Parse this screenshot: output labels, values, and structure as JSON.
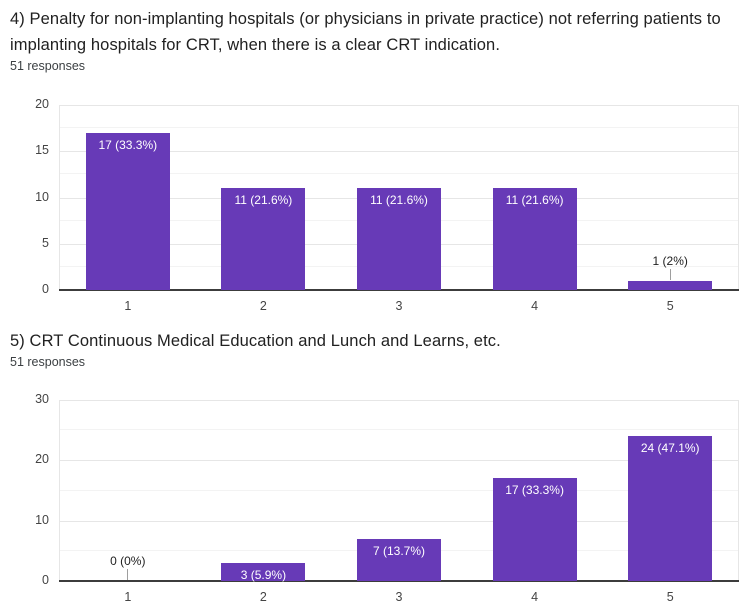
{
  "page": {
    "background": "#ffffff"
  },
  "chart_data": [
    {
      "type": "bar",
      "title": "4) Penalty for non-implanting hospitals (or physicians in private practice) not referring patients to implanting hospitals for CRT, when there is a clear CRT indication.",
      "title_lines": [
        "4) Penalty for non-implanting hospitals (or physicians in private practice) not referring patients to",
        "implanting hospitals for CRT, when there is a clear CRT indication."
      ],
      "subtitle": "51 responses",
      "categories": [
        "1",
        "2",
        "3",
        "4",
        "5"
      ],
      "values": [
        17,
        11,
        11,
        11,
        1
      ],
      "value_labels": [
        "17 (33.3%)",
        "11 (21.6%)",
        "11 (21.6%)",
        "11 (21.6%)",
        "1 (2%)"
      ],
      "xlabel": "",
      "ylabel": "",
      "ylim": [
        0,
        20
      ],
      "yticks": [
        0,
        5,
        10,
        15,
        20
      ],
      "minor_grid_step": 2.5,
      "bar_color": "#673ab7",
      "grid": true,
      "legend_position": "none"
    },
    {
      "type": "bar",
      "title": "5) CRT Continuous Medical Education and Lunch and Learns, etc.",
      "title_lines": [
        "5) CRT Continuous Medical Education and Lunch and Learns, etc.",
        ""
      ],
      "subtitle": "51 responses",
      "categories": [
        "1",
        "2",
        "3",
        "4",
        "5"
      ],
      "values": [
        0,
        3,
        7,
        17,
        24
      ],
      "value_labels": [
        "0 (0%)",
        "3 (5.9%)",
        "7 (13.7%)",
        "17 (33.3%)",
        "24 (47.1%)"
      ],
      "xlabel": "",
      "ylabel": "",
      "ylim": [
        0,
        30
      ],
      "yticks": [
        0,
        10,
        20,
        30
      ],
      "minor_grid_step": 5,
      "bar_color": "#673ab7",
      "grid": true,
      "legend_position": "none"
    }
  ]
}
